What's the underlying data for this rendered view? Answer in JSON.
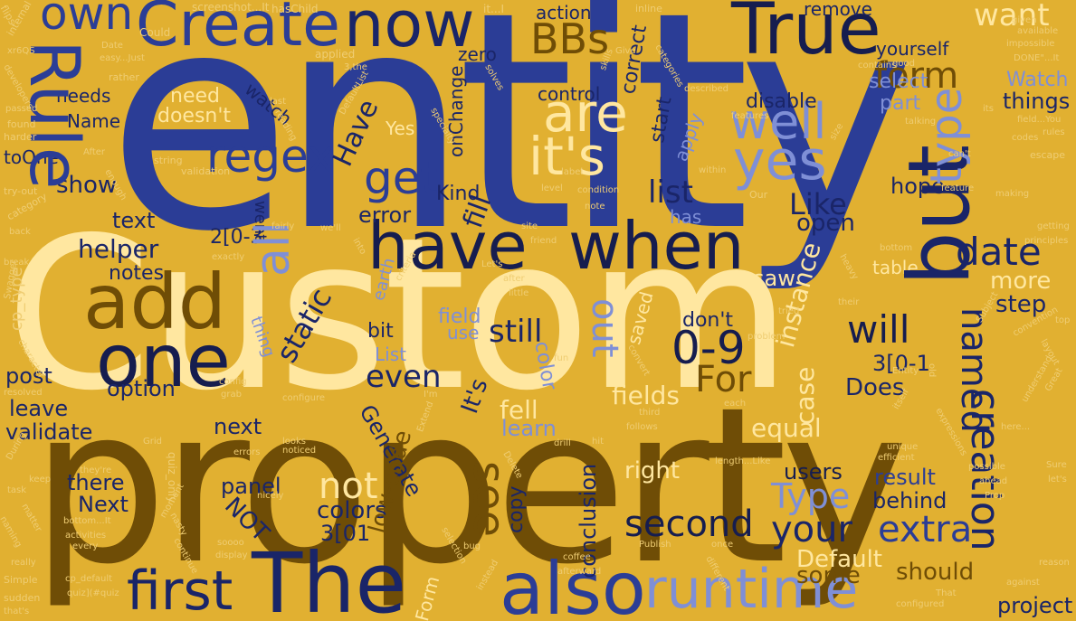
{
  "title": "word cloud",
  "colors": {
    "background": "#e1b031",
    "navy": "#1a2568",
    "blue": "#2b3d96",
    "periwinkle": "#7f8fd6",
    "cream": "#ffe7a0",
    "brown": "#6f4d06",
    "tan": "#efcd73"
  },
  "words": {
    "entity": "entity",
    "custom": "Custom",
    "property": "property",
    "but": "but",
    "have": "have",
    "when": "when",
    "the": "The",
    "also": "also",
    "runtime": "runtime",
    "first": "first",
    "add": "add",
    "one": "one",
    "rule": "Rule",
    "create": "Create",
    "now": "now",
    "true": "True",
    "own": "own",
    "creation": "creation",
    "type": "type",
    "are": "are",
    "its": "it's",
    "well": "well",
    "yes": "yes",
    "all": "all",
    "regex": "regex",
    "get": "get",
    "form": "form",
    "want": "want",
    "bbs": "BBs",
    "date": "date",
    "named": "named",
    "zero_nine": "0-9",
    "will": "will",
    "for": "For",
    "see": "see",
    "second": "second",
    "your": "your",
    "extra": "extra",
    "type_cap": "Type",
    "not": "not",
    "colors": "colors",
    "three_01": "3[01",
    "still": "still",
    "out": "out",
    "static": "static",
    "even": "even",
    "instance": "instance",
    "case": "case",
    "fields": "fields",
    "does": "Does",
    "equal": "equal",
    "like": "Like",
    "open": "open",
    "list": "list",
    "have_cap": "Have",
    "fill": "fill",
    "kind": "Kind",
    "text": "text",
    "show": "show",
    "helper": "helper",
    "notes": "notes",
    "option": "option",
    "post": "post",
    "leave": "leave",
    "validate": "validate",
    "next": "next",
    "there": "there",
    "next_cap": "Next",
    "panel": "panel",
    "not_cap": "NOT",
    "right": "right",
    "users": "users",
    "result": "result",
    "behind": "behind",
    "should": "should",
    "project": "project",
    "default": "Default",
    "some": "some",
    "low_code": "low-code",
    "form_cap": "Form",
    "copy": "copy",
    "conclusion": "conclusion",
    "generate": "Generate",
    "its_cap": "It's",
    "fell": "fell",
    "learn": "learn",
    "field": "field",
    "use": "use",
    "list_cap": "List",
    "color": "color",
    "saved": "saved",
    "dont": "don't",
    "saw": "saw",
    "more": "more",
    "step": "step",
    "table": "table",
    "hope": "hope",
    "three_0_1": "3[0-1",
    "two_0_3": "2[0-3",
    "error": "error",
    "bit": "bit",
    "thing": "thing",
    "earth": "earth",
    "has": "has",
    "start": "start",
    "apply": "apply",
    "disable": "disable",
    "control": "control",
    "things": "things",
    "watch_cap": "Watch",
    "part": "part",
    "select": "select",
    "yourself": "yourself",
    "action": "action",
    "correct": "correct",
    "remove": "remove",
    "zero": "zero",
    "oncharge": "onChange",
    "watch": "watch",
    "needs": "needs",
    "need": "need",
    "doesnt": "doesn't",
    "name": "Name",
    "toone": "toOne",
    "yes_cap": "Yes",
    "went": "went",
    "small": {
      "s1": "flips",
      "s2": "screenshot...It",
      "s3": "hasChild",
      "s4": "it...I",
      "s5": "inline",
      "s6": "internal",
      "s7": "Could",
      "s8": "Date",
      "s9": "easy...Just",
      "s10": "applied",
      "s11": "developers",
      "s12": "passed",
      "s13": "found",
      "s14": "harder",
      "s15": "After",
      "s16": "string",
      "s17": "validation",
      "s18": "try-out",
      "s19": "category",
      "s20": "back",
      "s21": "break",
      "s22": "exactly",
      "s23": "Swagger",
      "s24": "cp_type",
      "s25": "character",
      "s26": "resolved",
      "s27": "config",
      "s28": "grab",
      "s29": "configure",
      "s30": "During",
      "s31": "task",
      "s32": "naming",
      "s33": "really",
      "s34": "Simple",
      "s35": "cp_default",
      "s36": "quiz](#quiz",
      "s37": "sudden",
      "s38": "that's",
      "s39": "they're",
      "s40": "matter",
      "s41": "bottom...It",
      "s42": "activities",
      "s43": "every",
      "s44": "nasty",
      "s45": "soooo",
      "s46": "display",
      "s47": "errors",
      "s48": "noticed",
      "s49": "nicely",
      "s50": "looks",
      "s51": "Delete",
      "s52": "selection",
      "s53": "bug",
      "s54": "instead",
      "s55": "afterward",
      "s56": "coffee",
      "s57": "Publish",
      "s58": "once",
      "s59": "different",
      "s60": "configured",
      "s61": "That",
      "s62": "against",
      "s63": "reason",
      "s64": "Sure",
      "s65": "let's",
      "s66": "possible",
      "s67": "ahead",
      "s68": "Prop",
      "s69": "here...",
      "s70": "Great",
      "s71": "understand",
      "s72": "layout",
      "s73": "convention",
      "s74": "top",
      "s75": "Subject",
      "s76": "Entity",
      "s77": "old",
      "s78": "itself",
      "s79": "each",
      "s80": "follows",
      "s81": "third",
      "s82": "drill",
      "s83": "hit",
      "s84": "Extend",
      "s85": "I'm",
      "s86": "criteria",
      "s87": "Let's",
      "s88": "after",
      "s89": "little",
      "s90": "fun",
      "s91": "convert",
      "s92": "problem",
      "s93": "tried",
      "s94": "their",
      "s95": "bottom",
      "s96": "site",
      "s97": "friend",
      "s98": "we'll",
      "s99": "into",
      "s100": "heavy",
      "s101": "getting",
      "s102": "principles",
      "s103": "escape",
      "s104": "can't",
      "s105": "making",
      "s106": "feature",
      "s107": "codes",
      "s108": "rules",
      "s109": "field...You",
      "s110": "talking",
      "s111": "its",
      "s112": "features",
      "s113": "described",
      "s114": "contains",
      "s115": "good",
      "s116": "DONE\"...It",
      "s117": "impossible",
      "s118": "available",
      "s119": "Give",
      "s120": "categories",
      "s121": "skills",
      "s122": "solves",
      "s123": "rather",
      "s124": "DefaultList",
      "s125": "specialty",
      "s126": "enough",
      "s127": "Our",
      "s128": "within",
      "s129": "level",
      "s130": "condition",
      "s131": "note",
      "s132": "label",
      "s133": "fairly",
      "s134": "reading",
      "s135": "last",
      "s136": "xr6QS",
      "s137": "unique",
      "s138": "size",
      "s139": "length...Like",
      "s140": "efficient",
      "s141": "expressions",
      "s142": "keep",
      "s143": "continue",
      "s144": "moment",
      "s145": "quiz_only",
      "s146": "3,the",
      "s147": "given",
      "s148": "Grid"
    }
  }
}
